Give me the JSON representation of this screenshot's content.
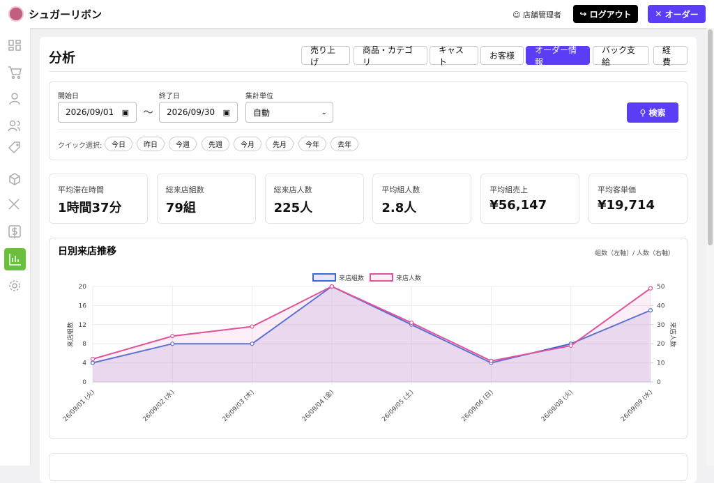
{
  "header": {
    "app_name": "シュガーリボン",
    "user": "店舗管理者",
    "logout": "ログアウト",
    "order": "オーダー"
  },
  "page": {
    "title": "分析",
    "tabs": [
      "売り上げ",
      "商品・カテゴリ",
      "キャスト",
      "お客様",
      "オーダー情報",
      "バック支給",
      "経費"
    ],
    "active_tab": 4
  },
  "filters": {
    "start_label": "開始日",
    "start_value": "2026/09/01",
    "separator": "〜",
    "end_label": "終了日",
    "end_value": "2026/09/30",
    "unit_label": "集計単位",
    "unit_value": "自動",
    "search": "検索",
    "quick_label": "クイック選択:",
    "quick": [
      "今日",
      "昨日",
      "今週",
      "先週",
      "今月",
      "先月",
      "今年",
      "去年"
    ]
  },
  "kpis": [
    {
      "label": "平均滞在時間",
      "value": "1時間37分"
    },
    {
      "label": "総来店組数",
      "value": "79組"
    },
    {
      "label": "総来店人数",
      "value": "225人"
    },
    {
      "label": "平均組人数",
      "value": "2.8人"
    },
    {
      "label": "平均組売上",
      "value": "¥56,147"
    },
    {
      "label": "平均客単価",
      "value": "¥19,714"
    }
  ],
  "chart_data": {
    "type": "line",
    "title": "日別来店推移",
    "annotation": "組数（左軸）/ 人数（右軸）",
    "ylabel": "来店組数",
    "y2label": "来店人数",
    "categories": [
      "26/09/01 (火)",
      "26/09/02 (水)",
      "26/09/03 (木)",
      "26/09/04 (金)",
      "26/09/05 (土)",
      "26/09/06 (日)",
      "26/09/08 (火)",
      "26/09/09 (水)"
    ],
    "series": [
      {
        "name": "来店組数",
        "color": "#3b68d6",
        "fill": "rgba(160,130,215,0.22)",
        "values": [
          4,
          8,
          8,
          20,
          12,
          4,
          8,
          15
        ]
      },
      {
        "name": "来店人数",
        "color": "#e0529a",
        "fill": "rgba(240,160,205,0.18)",
        "axis": "y2",
        "values": [
          12,
          24,
          29,
          50,
          31,
          11,
          19,
          49
        ]
      }
    ],
    "ylim": [
      0,
      20
    ],
    "yticks": [
      0,
      4,
      8,
      12,
      16,
      20
    ],
    "y2lim": [
      0,
      50
    ],
    "y2ticks": [
      0,
      10,
      20,
      30,
      40,
      50
    ],
    "grid": true,
    "legend": "top"
  }
}
